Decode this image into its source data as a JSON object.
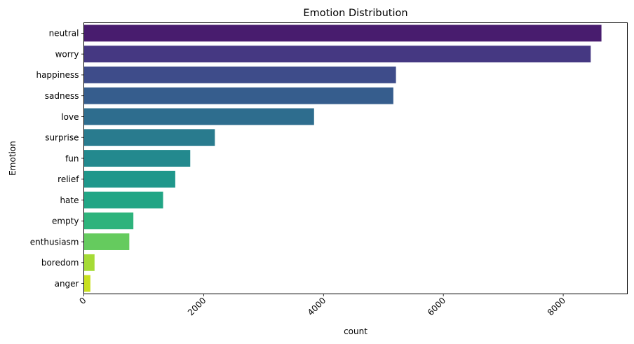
{
  "chart_data": {
    "type": "bar",
    "orientation": "horizontal",
    "title": "Emotion Distribution",
    "xlabel": "count",
    "ylabel": "Emotion",
    "categories": [
      "neutral",
      "worry",
      "happiness",
      "sadness",
      "love",
      "surprise",
      "fun",
      "relief",
      "hate",
      "empty",
      "enthusiasm",
      "boredom",
      "anger"
    ],
    "values": [
      8638,
      8459,
      5209,
      5165,
      3842,
      2187,
      1776,
      1526,
      1323,
      827,
      759,
      179,
      110
    ],
    "xlim": [
      0,
      9070
    ],
    "xticks": [
      0,
      2000,
      4000,
      6000,
      8000
    ],
    "xtick_rotation": 45,
    "grid": false,
    "colormap": "viridis",
    "colors": [
      "#481c6e",
      "#453882",
      "#3e4c8a",
      "#365d8d",
      "#2e6d8e",
      "#297b8e",
      "#23898e",
      "#1f978b",
      "#21a585",
      "#2eb37c",
      "#65cb5e",
      "#a5db36",
      "#c8e020"
    ]
  }
}
